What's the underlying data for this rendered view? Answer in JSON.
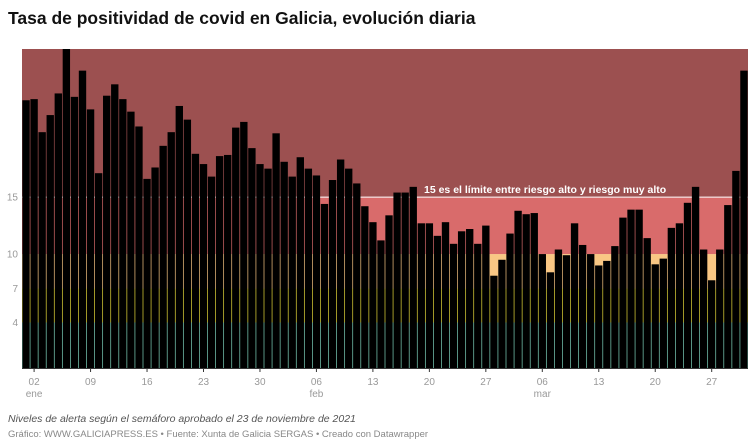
{
  "title": "Tasa de positividad de covid en Galicia, evolución diaria",
  "note": "Niveles de alerta según el semáforo aprobado el 23 de noviembre de 2021",
  "source": "Gráfico: WWW.GALICIAPRESS.ES • Fuente: Xunta de Galicia SERGAS • Creado con Datawrapper",
  "chart_data": {
    "type": "bar",
    "title": "Tasa de positividad de covid en Galicia, evolución diaria",
    "xlabel": "",
    "ylabel": "",
    "ylim": [
      0,
      28
    ],
    "grid": false,
    "y_ticks": [
      4,
      7,
      10,
      15
    ],
    "x_ticks": [
      {
        "date": "02 ene",
        "label": "02",
        "month": "ene"
      },
      {
        "date": "09 ene",
        "label": "09"
      },
      {
        "date": "16 ene",
        "label": "16"
      },
      {
        "date": "23 ene",
        "label": "23"
      },
      {
        "date": "30 ene",
        "label": "30"
      },
      {
        "date": "06 feb",
        "label": "06",
        "month": "feb"
      },
      {
        "date": "13 feb",
        "label": "13"
      },
      {
        "date": "20 feb",
        "label": "20"
      },
      {
        "date": "27 feb",
        "label": "27"
      },
      {
        "date": "06 mar",
        "label": "06",
        "month": "mar"
      },
      {
        "date": "13 mar",
        "label": "13"
      },
      {
        "date": "20 mar",
        "label": "20"
      },
      {
        "date": "27 mar",
        "label": "27"
      }
    ],
    "bands": [
      {
        "from": 0,
        "to": 4,
        "color": "#7fd3bd"
      },
      {
        "from": 4,
        "to": 7,
        "color": "#e6da3a"
      },
      {
        "from": 7,
        "to": 10,
        "color": "#f9c784"
      },
      {
        "from": 10,
        "to": 15,
        "color": "#d96b6b"
      },
      {
        "from": 15,
        "to": 28,
        "color": "#9c5050"
      }
    ],
    "bar_color": "#000000",
    "reference_line": {
      "value": 15,
      "color": "#ffffff",
      "label": "15 es el límite entre riesgo alto y riesgo muy alto"
    },
    "x": [
      "01 ene",
      "02 ene",
      "03 ene",
      "04 ene",
      "05 ene",
      "06 ene",
      "07 ene",
      "08 ene",
      "09 ene",
      "10 ene",
      "11 ene",
      "12 ene",
      "13 ene",
      "14 ene",
      "15 ene",
      "16 ene",
      "17 ene",
      "18 ene",
      "19 ene",
      "20 ene",
      "21 ene",
      "22 ene",
      "23 ene",
      "24 ene",
      "25 ene",
      "26 ene",
      "27 ene",
      "28 ene",
      "29 ene",
      "30 ene",
      "31 ene",
      "01 feb",
      "02 feb",
      "03 feb",
      "04 feb",
      "05 feb",
      "06 feb",
      "07 feb",
      "08 feb",
      "09 feb",
      "10 feb",
      "11 feb",
      "12 feb",
      "13 feb",
      "14 feb",
      "15 feb",
      "16 feb",
      "17 feb",
      "18 feb",
      "19 feb",
      "20 feb",
      "21 feb",
      "22 feb",
      "23 feb",
      "24 feb",
      "25 feb",
      "26 feb",
      "27 feb",
      "28 feb",
      "01 mar",
      "02 mar",
      "03 mar",
      "04 mar",
      "05 mar",
      "06 mar",
      "07 mar",
      "08 mar",
      "09 mar",
      "10 mar",
      "11 mar",
      "12 mar",
      "13 mar",
      "14 mar",
      "15 mar",
      "16 mar",
      "17 mar",
      "18 mar",
      "19 mar",
      "20 mar",
      "21 mar",
      "22 mar",
      "23 mar",
      "24 mar",
      "25 mar",
      "26 mar",
      "27 mar",
      "28 mar",
      "29 mar",
      "30 mar",
      "31 mar"
    ],
    "values": [
      23.5,
      23.6,
      20.7,
      22.2,
      24.1,
      28.0,
      23.8,
      26.1,
      22.7,
      17.1,
      23.9,
      24.9,
      23.6,
      22.5,
      21.2,
      16.6,
      17.6,
      19.5,
      20.7,
      23.0,
      21.8,
      18.8,
      17.9,
      16.8,
      18.6,
      18.7,
      21.1,
      21.6,
      19.3,
      17.9,
      17.5,
      20.6,
      18.1,
      16.8,
      18.5,
      17.5,
      16.9,
      14.4,
      16.5,
      18.3,
      17.5,
      16.2,
      14.2,
      12.8,
      11.2,
      13.4,
      15.4,
      15.4,
      15.9,
      12.7,
      12.7,
      11.6,
      12.8,
      10.9,
      12.0,
      12.2,
      10.9,
      12.5,
      8.1,
      9.5,
      11.8,
      13.8,
      13.5,
      13.6,
      10.0,
      8.4,
      10.4,
      9.9,
      12.7,
      10.8,
      10.0,
      9.0,
      9.4,
      10.7,
      13.2,
      13.9,
      13.9,
      11.4,
      9.1,
      9.6,
      12.3,
      12.7,
      14.5,
      15.9,
      10.4,
      7.7,
      10.4,
      14.3,
      17.3,
      26.1
    ]
  }
}
